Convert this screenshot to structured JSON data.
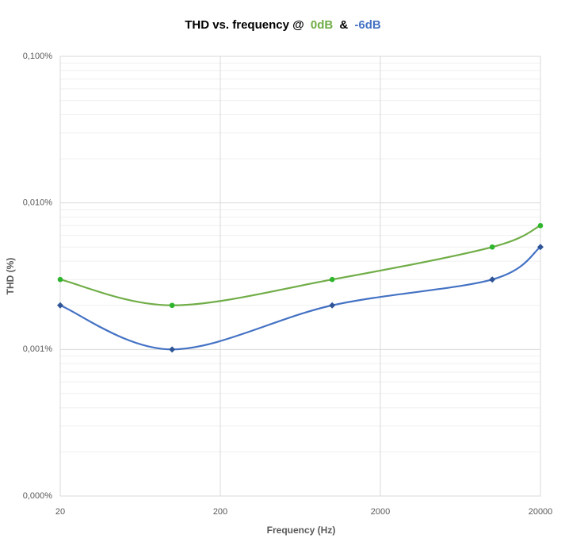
{
  "chart_data": {
    "type": "line",
    "title": "THD vs. frequency @",
    "title_joiner": "&",
    "x_label": "Frequency (Hz)",
    "y_label": "THD (%)",
    "x": [
      20,
      100,
      1000,
      10000,
      20000
    ],
    "series": [
      {
        "name": "0dB",
        "color": "#70ad47",
        "marker_color": "#2db52d",
        "marker": "circle",
        "values": [
          0.003,
          0.002,
          0.003,
          0.005,
          0.007
        ]
      },
      {
        "name": "-6dB",
        "color": "#4472c4",
        "marker_color": "#2f5597",
        "marker": "diamond",
        "values": [
          0.002,
          0.001,
          0.002,
          0.003,
          0.005
        ]
      }
    ],
    "x_log": true,
    "y_log": true,
    "xlim": [
      20,
      20000
    ],
    "xticks": [
      20,
      200,
      2000,
      20000
    ],
    "ylim": [
      0.0001,
      0.1
    ],
    "yticks": [
      {
        "value": 0.0001,
        "label": "0,000%"
      },
      {
        "value": 0.001,
        "label": "0,001%"
      },
      {
        "value": 0.01,
        "label": "0,010%"
      },
      {
        "value": 0.1,
        "label": "0,100%"
      }
    ],
    "grid": true,
    "smooth": true
  }
}
